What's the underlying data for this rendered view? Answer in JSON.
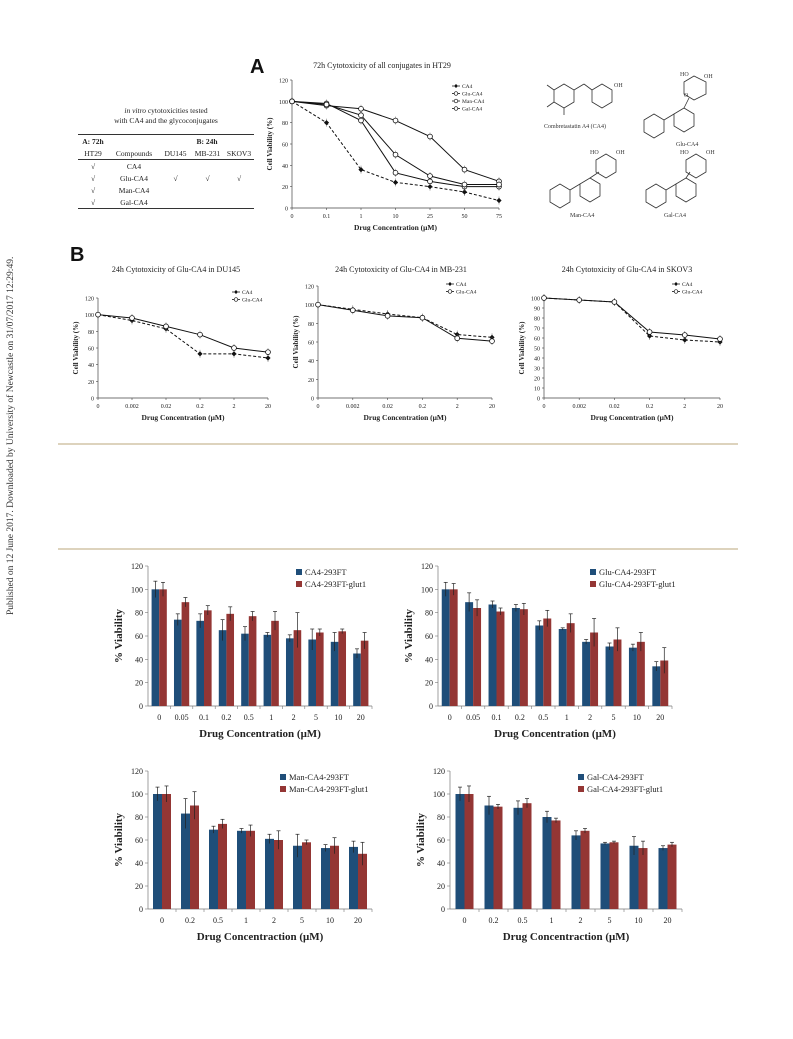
{
  "side_note": "Published on 12 June 2017. Downloaded by University of Newcastle on 31/07/2017 12:29:49.",
  "panel_labels": {
    "a": "A",
    "b": "B"
  },
  "table": {
    "title_italic": "in vitro",
    "title_rest": " cytotoxicities tested",
    "title_line2": "with CA4 and the glycoconjugates",
    "header_a": "A: 72h",
    "header_b": "B: 24h",
    "header_compounds": "Compounds",
    "lines": [
      "HT29",
      "DU145",
      "MB-231",
      "SKOV3"
    ],
    "check": "√",
    "rows": [
      {
        "compound": "CA4",
        "marks": [
          true,
          false,
          false,
          false
        ]
      },
      {
        "compound": "Glu-CA4",
        "marks": [
          true,
          true,
          true,
          true
        ]
      },
      {
        "compound": "Man-CA4",
        "marks": [
          true,
          false,
          false,
          false
        ]
      },
      {
        "compound": "Gal-CA4",
        "marks": [
          true,
          false,
          false,
          false
        ]
      }
    ]
  },
  "structures": {
    "labels": [
      "Combretastatin A4 (CA4)",
      "Glu-CA4",
      "Man-CA4",
      "Gal-CA4"
    ],
    "atoms": {
      "oh": "OH",
      "ho": "HO",
      "o": "O"
    }
  },
  "chart_data": [
    {
      "id": "a",
      "type": "line",
      "title": "72h Cytotoxicity of all conjugates in HT29",
      "xlabel": "Drug Concentration (μM)",
      "ylabel": "Cell Viability (%)",
      "categories": [
        "0",
        "0.1",
        "1",
        "10",
        "25",
        "50",
        "75"
      ],
      "ylim": [
        0,
        120
      ],
      "yticks": [
        0,
        20,
        40,
        60,
        80,
        100,
        120
      ],
      "legend_position": "top-right",
      "series": [
        {
          "name": "CA4",
          "values": [
            100,
            80,
            36,
            24,
            20,
            15,
            7
          ],
          "marker": "filled-diamond",
          "dash": true
        },
        {
          "name": "Glu-CA4",
          "values": [
            100,
            98,
            82,
            33,
            25,
            20,
            20
          ],
          "marker": "open-circle",
          "dash": false
        },
        {
          "name": "Man-CA4",
          "values": [
            100,
            96,
            93,
            82,
            67,
            36,
            25
          ],
          "marker": "open-circle",
          "dash": false
        },
        {
          "name": "Gal-CA4",
          "values": [
            100,
            97,
            87,
            50,
            30,
            22,
            22
          ],
          "marker": "open-circle",
          "dash": false
        }
      ]
    },
    {
      "id": "b1",
      "type": "line",
      "title": "24h Cytotoxicity of Glu-CA4  in DU145",
      "xlabel": "Drug Concentration (μM)",
      "ylabel": "Cell Viability (%)",
      "categories": [
        "0",
        "0.002",
        "0.02",
        "0.2",
        "2",
        "20"
      ],
      "ylim": [
        0,
        120
      ],
      "yticks": [
        0,
        20,
        40,
        60,
        80,
        100,
        120
      ],
      "legend_position": "top-right",
      "series": [
        {
          "name": "CA4",
          "values": [
            100,
            93,
            83,
            53,
            53,
            48
          ],
          "marker": "filled-diamond",
          "dash": true
        },
        {
          "name": "Glu-CA4",
          "values": [
            100,
            96,
            86,
            76,
            60,
            55
          ],
          "marker": "open-circle",
          "dash": false
        }
      ]
    },
    {
      "id": "b2",
      "type": "line",
      "title": "24h Cytotoxicity of Glu-CA4  in MB-231",
      "xlabel": "Drug Concentration (μM)",
      "ylabel": "Cell Viability (%)",
      "categories": [
        "0",
        "0.002",
        "0.02",
        "0.2",
        "2",
        "20"
      ],
      "ylim": [
        0,
        120
      ],
      "yticks": [
        0,
        20,
        40,
        60,
        80,
        100,
        120
      ],
      "legend_position": "top-right",
      "series": [
        {
          "name": "CA4",
          "values": [
            100,
            95,
            90,
            86,
            68,
            65
          ],
          "marker": "filled-diamond",
          "dash": true
        },
        {
          "name": "Glu-CA4",
          "values": [
            100,
            94,
            88,
            86,
            64,
            61
          ],
          "marker": "open-circle",
          "dash": false
        }
      ]
    },
    {
      "id": "b3",
      "type": "line",
      "title": "24h Cytotoxicity of Glu-CA4  in SKOV3",
      "xlabel": "Drug Concentration (μM)",
      "ylabel": "Cell Viability (%)",
      "categories": [
        "0",
        "0.002",
        "0.02",
        "0.2",
        "2",
        "20"
      ],
      "ylim": [
        0,
        100
      ],
      "yticks": [
        0,
        10,
        20,
        30,
        40,
        50,
        60,
        70,
        80,
        90,
        100
      ],
      "legend_position": "top-right",
      "series": [
        {
          "name": "CA4",
          "values": [
            100,
            98,
            96,
            62,
            58,
            56
          ],
          "marker": "filled-diamond",
          "dash": true
        },
        {
          "name": "Glu-CA4",
          "values": [
            100,
            98,
            96,
            66,
            63,
            59
          ],
          "marker": "open-circle",
          "dash": false
        }
      ]
    },
    {
      "id": "c1",
      "type": "bar",
      "xlabel": "Drug Concentration (μM)",
      "ylabel": "% Viability",
      "categories": [
        "0",
        "0.05",
        "0.1",
        "0.2",
        "0.5",
        "1",
        "2",
        "5",
        "10",
        "20"
      ],
      "ylim": [
        0,
        120
      ],
      "yticks": [
        0,
        20,
        40,
        60,
        80,
        100,
        120
      ],
      "legend_position": "top-right",
      "series": [
        {
          "name": "CA4-293FT",
          "values": [
            100,
            74,
            73,
            65,
            62,
            61,
            58,
            57,
            55,
            45
          ],
          "errors": [
            7,
            5,
            6,
            9,
            6,
            2,
            3,
            9,
            8,
            4
          ]
        },
        {
          "name": "CA4-293FT-glut1",
          "values": [
            100,
            89,
            82,
            79,
            77,
            73,
            65,
            63,
            64,
            56
          ],
          "errors": [
            6,
            4,
            4,
            6,
            4,
            8,
            15,
            3,
            2,
            7
          ]
        }
      ]
    },
    {
      "id": "c2",
      "type": "bar",
      "xlabel": "Drug Concentration (μM)",
      "ylabel": "% Viability",
      "categories": [
        "0",
        "0.05",
        "0.1",
        "0.2",
        "0.5",
        "1",
        "2",
        "5",
        "10",
        "20"
      ],
      "ylim": [
        0,
        120
      ],
      "yticks": [
        0,
        20,
        40,
        60,
        80,
        100,
        120
      ],
      "legend_position": "top-right",
      "series": [
        {
          "name": "Glu-CA4-293FT",
          "values": [
            100,
            89,
            87,
            84,
            69,
            66,
            55,
            51,
            50,
            34
          ],
          "errors": [
            6,
            8,
            3,
            3,
            4,
            1,
            2,
            3,
            3,
            4
          ]
        },
        {
          "name": "Glu-CA4-293FT-glut1",
          "values": [
            100,
            84,
            81,
            83,
            75,
            71,
            63,
            57,
            55,
            39
          ],
          "errors": [
            5,
            7,
            3,
            5,
            7,
            8,
            12,
            10,
            8,
            11
          ]
        }
      ]
    },
    {
      "id": "c3",
      "type": "bar",
      "xlabel": "Drug Concentraction (μM)",
      "ylabel": "% Viability",
      "categories": [
        "0",
        "0.2",
        "0.5",
        "1",
        "2",
        "5",
        "10",
        "20"
      ],
      "ylim": [
        0,
        120
      ],
      "yticks": [
        0,
        20,
        40,
        60,
        80,
        100,
        120
      ],
      "legend_position": "top-right",
      "series": [
        {
          "name": "Man-CA4-293FT",
          "values": [
            100,
            83,
            69,
            68,
            61,
            55,
            53,
            54
          ],
          "errors": [
            6,
            13,
            3,
            2,
            4,
            10,
            3,
            5
          ]
        },
        {
          "name": "Man-CA4-293FT-glut1",
          "values": [
            100,
            90,
            74,
            68,
            60,
            58,
            55,
            48
          ],
          "errors": [
            7,
            12,
            4,
            5,
            8,
            2,
            7,
            10
          ]
        }
      ]
    },
    {
      "id": "c4",
      "type": "bar",
      "xlabel": "Drug Concentraction (μM)",
      "ylabel": "% Viability",
      "categories": [
        "0",
        "0.2",
        "0.5",
        "1",
        "2",
        "5",
        "10",
        "20"
      ],
      "ylim": [
        0,
        120
      ],
      "yticks": [
        0,
        20,
        40,
        60,
        80,
        100,
        120
      ],
      "legend_position": "top-right",
      "series": [
        {
          "name": "Gal-CA4-293FT",
          "values": [
            100,
            90,
            88,
            80,
            64,
            57,
            55,
            53
          ],
          "errors": [
            6,
            8,
            6,
            5,
            4,
            1,
            8,
            2
          ]
        },
        {
          "name": "Gal-CA4-293FT-glut1",
          "values": [
            100,
            89,
            92,
            77,
            68,
            58,
            53,
            56
          ],
          "errors": [
            7,
            2,
            4,
            2,
            2,
            1,
            6,
            2
          ]
        }
      ]
    }
  ],
  "colors": {
    "series_blue": "#1f4e79",
    "series_red": "#943634",
    "divider": "#ddd3bd",
    "line": "#111111"
  }
}
